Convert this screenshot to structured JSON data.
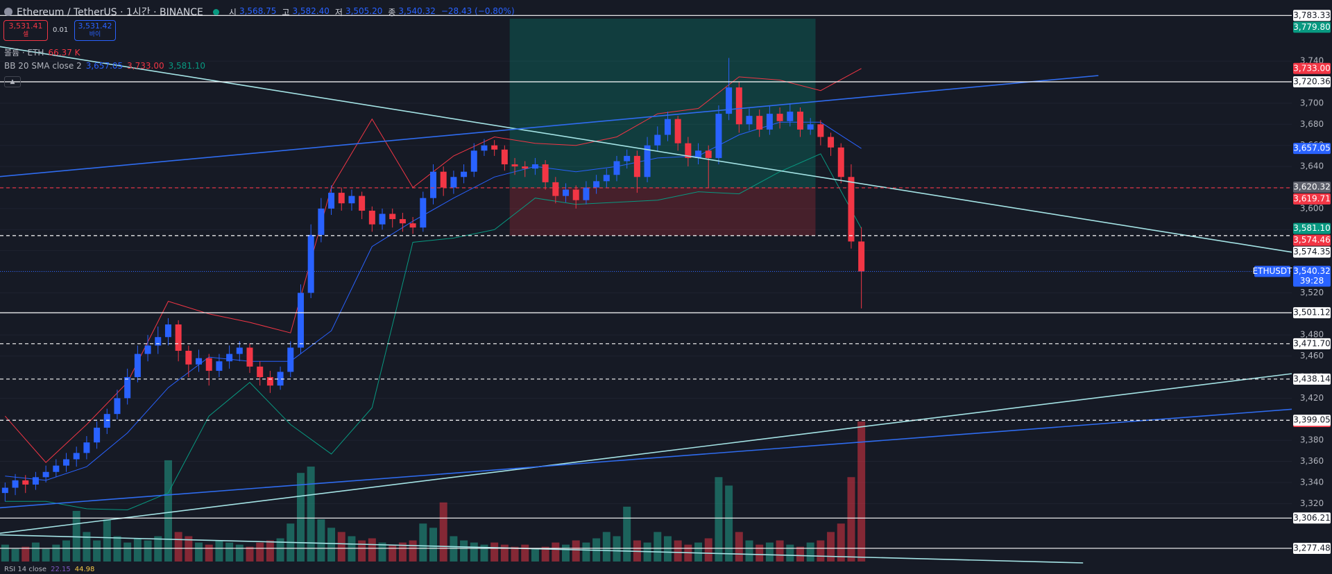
{
  "header": {
    "symbol": "Ethereum / TetherUS · 1시간 · BINANCE",
    "ohlc": [
      {
        "label": "시",
        "value": "3,568.75"
      },
      {
        "label": "고",
        "value": "3,582.40"
      },
      {
        "label": "저",
        "value": "3,505.20"
      },
      {
        "label": "종",
        "value": "3,540.32"
      }
    ],
    "change": "−28.43 (−0.80%)"
  },
  "trade": {
    "sell_price": "3,531.41",
    "sell_label": "셀",
    "spread": "0.01",
    "buy_price": "3,531.42",
    "buy_label": "바이"
  },
  "indicators": {
    "volume_name": "볼륨 · ETH",
    "volume_value": "66.37 K",
    "bb_name": "BB 20 SMA close 2",
    "bb_values": [
      "3,657.05",
      "3,733.00",
      "3,581.10"
    ],
    "rsi_name": "RSI 14 close",
    "rsi_values": [
      "22.15",
      "44.98"
    ]
  },
  "chart_data": {
    "type": "candlestick",
    "open": [
      3330,
      3335,
      3342,
      3338,
      3345,
      3350,
      3356,
      3362,
      3368,
      3378,
      3392,
      3405,
      3420,
      3440,
      3462,
      3470,
      3478,
      3490,
      3465,
      3452,
      3458,
      3446,
      3455,
      3462,
      3468,
      3450,
      3440,
      3432,
      3445,
      3468,
      3520,
      3575,
      3600,
      3615,
      3605,
      3612,
      3598,
      3585,
      3595,
      3590,
      3586,
      3582,
      3610,
      3635,
      3620,
      3630,
      3635,
      3655,
      3660,
      3656,
      3642,
      3640,
      3638,
      3642,
      3625,
      3612,
      3618,
      3608,
      3620,
      3626,
      3632,
      3645,
      3650,
      3630,
      3660,
      3670,
      3685,
      3662,
      3648,
      3655,
      3648,
      3690,
      3715,
      3680,
      3688,
      3675,
      3690,
      3683,
      3692,
      3675,
      3680,
      3668,
      3658,
      3630,
      3568.75
    ],
    "high": [
      3340,
      3348,
      3347,
      3350,
      3356,
      3362,
      3368,
      3374,
      3384,
      3398,
      3410,
      3428,
      3448,
      3470,
      3480,
      3488,
      3496,
      3494,
      3470,
      3466,
      3462,
      3462,
      3470,
      3474,
      3472,
      3455,
      3446,
      3450,
      3474,
      3528,
      3585,
      3610,
      3622,
      3620,
      3618,
      3616,
      3602,
      3600,
      3600,
      3596,
      3592,
      3616,
      3642,
      3640,
      3636,
      3642,
      3662,
      3666,
      3665,
      3660,
      3648,
      3645,
      3648,
      3646,
      3630,
      3624,
      3622,
      3626,
      3632,
      3638,
      3650,
      3656,
      3655,
      3668,
      3678,
      3692,
      3688,
      3668,
      3662,
      3660,
      3698,
      3743,
      3720,
      3695,
      3694,
      3698,
      3696,
      3700,
      3696,
      3686,
      3684,
      3672,
      3662,
      3642,
      3582.4
    ],
    "low": [
      3322,
      3328,
      3330,
      3333,
      3340,
      3345,
      3350,
      3355,
      3362,
      3372,
      3386,
      3400,
      3414,
      3435,
      3455,
      3462,
      3470,
      3455,
      3440,
      3445,
      3432,
      3440,
      3448,
      3455,
      3444,
      3432,
      3425,
      3428,
      3440,
      3462,
      3515,
      3568,
      3594,
      3598,
      3598,
      3590,
      3578,
      3580,
      3582,
      3578,
      3576,
      3578,
      3604,
      3612,
      3614,
      3624,
      3630,
      3650,
      3650,
      3636,
      3632,
      3630,
      3632,
      3618,
      3605,
      3606,
      3600,
      3604,
      3614,
      3620,
      3626,
      3638,
      3615,
      3625,
      3655,
      3664,
      3655,
      3640,
      3642,
      3620,
      3642,
      3684,
      3672,
      3674,
      3668,
      3670,
      3676,
      3678,
      3668,
      3670,
      3660,
      3650,
      3624,
      3562,
      3505.2
    ],
    "close": [
      3335,
      3342,
      3338,
      3345,
      3350,
      3356,
      3362,
      3368,
      3378,
      3392,
      3405,
      3420,
      3440,
      3462,
      3470,
      3478,
      3490,
      3465,
      3452,
      3458,
      3446,
      3455,
      3462,
      3468,
      3450,
      3440,
      3432,
      3445,
      3468,
      3520,
      3575,
      3600,
      3615,
      3605,
      3612,
      3598,
      3585,
      3595,
      3590,
      3586,
      3582,
      3610,
      3635,
      3620,
      3630,
      3635,
      3655,
      3660,
      3656,
      3642,
      3640,
      3638,
      3642,
      3625,
      3612,
      3618,
      3608,
      3620,
      3626,
      3632,
      3645,
      3650,
      3630,
      3660,
      3670,
      3685,
      3662,
      3648,
      3655,
      3648,
      3690,
      3715,
      3680,
      3688,
      3675,
      3690,
      3683,
      3692,
      3675,
      3680,
      3668,
      3658,
      3630,
      3568.75,
      3540.32
    ],
    "up_color": "#2962ff",
    "down_color": "#f23645",
    "volume": {
      "values": [
        8,
        6,
        7,
        9,
        6,
        8,
        10,
        24,
        14,
        10,
        20,
        12,
        9,
        11,
        10,
        12,
        48,
        14,
        12,
        9,
        8,
        10,
        9,
        8,
        7,
        9,
        10,
        11,
        18,
        42,
        45,
        20,
        16,
        14,
        12,
        10,
        11,
        9,
        8,
        9,
        10,
        18,
        16,
        28,
        12,
        10,
        9,
        8,
        9,
        8,
        7,
        8,
        6,
        7,
        9,
        8,
        10,
        9,
        11,
        14,
        12,
        26,
        10,
        9,
        14,
        12,
        10,
        8,
        9,
        11,
        40,
        36,
        14,
        10,
        8,
        9,
        10,
        8,
        7,
        9,
        10,
        14,
        18,
        40,
        66.37
      ],
      "up_color": "#22ab94",
      "down_color": "#f23645",
      "tag": "66.37K"
    },
    "bb": {
      "x": [
        0,
        4,
        8,
        12,
        16,
        20,
        24,
        28,
        32,
        36,
        40,
        44,
        48,
        52,
        56,
        60,
        64,
        68,
        72,
        76,
        80,
        84
      ],
      "upper": [
        3403,
        3359,
        3395,
        3435,
        3512,
        3500,
        3492,
        3482,
        3620,
        3685,
        3620,
        3650,
        3668,
        3662,
        3660,
        3668,
        3690,
        3695,
        3725,
        3722,
        3712,
        3733.0
      ],
      "basis": [
        3346,
        3342,
        3355,
        3387,
        3430,
        3459,
        3455,
        3455,
        3484,
        3564,
        3588,
        3610,
        3630,
        3640,
        3635,
        3640,
        3648,
        3650,
        3670,
        3682,
        3682,
        3657.05
      ],
      "lower": [
        3322,
        3322,
        3315,
        3314,
        3330,
        3403,
        3435,
        3395,
        3367,
        3411,
        3568,
        3572,
        3580,
        3610,
        3604,
        3606,
        3608,
        3616,
        3614,
        3635,
        3652,
        3581.1
      ],
      "upper_color": "#f23645",
      "basis_color": "#2962ff",
      "lower_color": "#089981"
    },
    "lines": [
      {
        "x": [
          -0.5,
          126.25
        ],
        "y": [
          3753.7,
          3558.6
        ],
        "color": "#a5e4e6"
      },
      {
        "x": [
          -0.5,
          107.25
        ],
        "y": [
          3630.4,
          3726.3
        ],
        "color": "#2f6cf0"
      },
      {
        "x": [
          -0.5,
          126.25
        ],
        "y": [
          3291.8,
          3443.3
        ],
        "color": "#a5e4e6"
      },
      {
        "x": [
          -0.5,
          126.25
        ],
        "y": [
          3316.0,
          3409.5
        ],
        "color": "#2f6cf0"
      },
      {
        "x": [
          -0.5,
          105.75
        ],
        "y": [
          3290.2,
          3263.6
        ],
        "color": "#a5e4e6"
      }
    ],
    "position": {
      "x": [
        49.5,
        79.5
      ],
      "target": 3780.3,
      "entry": 3619.71,
      "stop": 3574.35
    },
    "levels": [
      {
        "value": 3783.33,
        "label": "3,783.33",
        "style": "solid",
        "color": "#ffffff"
      },
      {
        "value": 3720.36,
        "label": "3,720.36",
        "style": "solid",
        "color": "#ffffff"
      },
      {
        "value": 3619.71,
        "label": "3,619.71",
        "style": "dashed",
        "color": "#f23645"
      },
      {
        "value": 3574.35,
        "label": "3,574.35",
        "style": "dashed",
        "color": "#ffffff"
      },
      {
        "value": 3501.12,
        "label": "3,501.12",
        "style": "solid",
        "color": "#ffffff"
      },
      {
        "value": 3471.7,
        "label": "3,471.70",
        "style": "dashed",
        "color": "#ffffff"
      },
      {
        "value": 3438.14,
        "label": "3,438.14",
        "style": "dashed",
        "color": "#ffffff"
      },
      {
        "value": 3399.05,
        "label": "3,399.05",
        "style": "dashed",
        "color": "#ffffff"
      },
      {
        "value": 3306.21,
        "label": "3,306.21",
        "style": "solid",
        "color": "#ffffff"
      },
      {
        "value": 3277.48,
        "label": "3,277.48",
        "style": "solid",
        "color": "#ffffff"
      }
    ],
    "tags": [
      {
        "value": 3779.8,
        "label": "3,779.80",
        "color": "#089981"
      },
      {
        "value": 3733.0,
        "label": "3,733.00",
        "color": "#f23645"
      },
      {
        "value": 3657.05,
        "label": "3,657.05",
        "color": "#2962ff"
      },
      {
        "value": 3620.32,
        "label": "3,620.32",
        "color": "#5d606b"
      },
      {
        "value": 3581.1,
        "label": "3,581.10",
        "color": "#089981"
      },
      {
        "value": 3574.46,
        "label": "3,574.46",
        "color": "#f23645"
      },
      {
        "value": 3540.32,
        "label": "3,540.32",
        "sub": "39:28",
        "name": "ETHUSDT",
        "color": "#2962ff"
      }
    ],
    "ylim": [
      3253.1,
      3798.0
    ],
    "yticks": [
      {
        "value": 3320,
        "label": "3,320"
      },
      {
        "value": 3340,
        "label": "3,340"
      },
      {
        "value": 3360,
        "label": "3,360"
      },
      {
        "value": 3380,
        "label": "3,380"
      },
      {
        "value": 3400,
        "label": "3,400"
      },
      {
        "value": 3420,
        "label": "3,420"
      },
      {
        "value": 3440,
        "label": "3,440"
      },
      {
        "value": 3460,
        "label": "3,460"
      },
      {
        "value": 3480,
        "label": "3,480"
      },
      {
        "value": 3500,
        "label": "3,500"
      },
      {
        "value": 3520,
        "label": "3,520"
      },
      {
        "value": 3540,
        "label": "3,540"
      },
      {
        "value": 3560,
        "label": "3,560"
      },
      {
        "value": 3580,
        "label": "3,580"
      },
      {
        "value": 3600,
        "label": "3,600"
      },
      {
        "value": 3620,
        "label": "3,620"
      },
      {
        "value": 3640,
        "label": "3,640"
      },
      {
        "value": 3660,
        "label": "3,660"
      },
      {
        "value": 3680,
        "label": "3,680"
      },
      {
        "value": 3700,
        "label": "3,700"
      },
      {
        "value": 3720,
        "label": "3,720"
      },
      {
        "value": 3740,
        "label": "3,740"
      }
    ],
    "grid": true
  }
}
